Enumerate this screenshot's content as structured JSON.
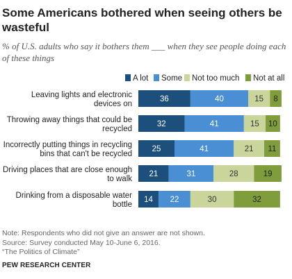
{
  "header": {
    "title": "Some Americans bothered when seeing others be wasteful",
    "subtitle": "% of U.S. adults who say it bothers them ___ when they see people doing each of these things"
  },
  "chart_data": {
    "type": "bar",
    "orientation": "horizontal",
    "stacked": true,
    "categories": [
      [
        "Leaving lights and electronic",
        "devices on"
      ],
      [
        "Throwing away things that could be",
        "recycled"
      ],
      [
        "Incorrectly putting things in recycling",
        "bins that can't be recycled"
      ],
      [
        "Driving places that are close enough",
        "to walk"
      ],
      [
        "Drinking from a disposable water",
        "bottle"
      ]
    ],
    "series": [
      {
        "name": "A lot",
        "values": [
          36,
          32,
          25,
          21,
          14
        ],
        "color": "#1d4f7c",
        "label_color": "#ffffff"
      },
      {
        "name": "Some",
        "values": [
          40,
          41,
          41,
          31,
          22
        ],
        "color": "#4a8fd4",
        "label_color": "#ffffff"
      },
      {
        "name": "Not too much",
        "values": [
          15,
          15,
          21,
          28,
          30
        ],
        "color": "#c9d59a",
        "label_color": "#333333"
      },
      {
        "name": "Not at all",
        "values": [
          8,
          10,
          11,
          19,
          32
        ],
        "color": "#7f9d3a",
        "label_color": "#222222"
      }
    ],
    "legend_position": "top-right",
    "grid": false
  },
  "notes": [
    "Note: Respondents who did not give an answer are not shown.",
    "Source: Survey conducted May 10-June 6, 2016.",
    "“The Politics of Climate”"
  ],
  "brand": "PEW RESEARCH CENTER"
}
